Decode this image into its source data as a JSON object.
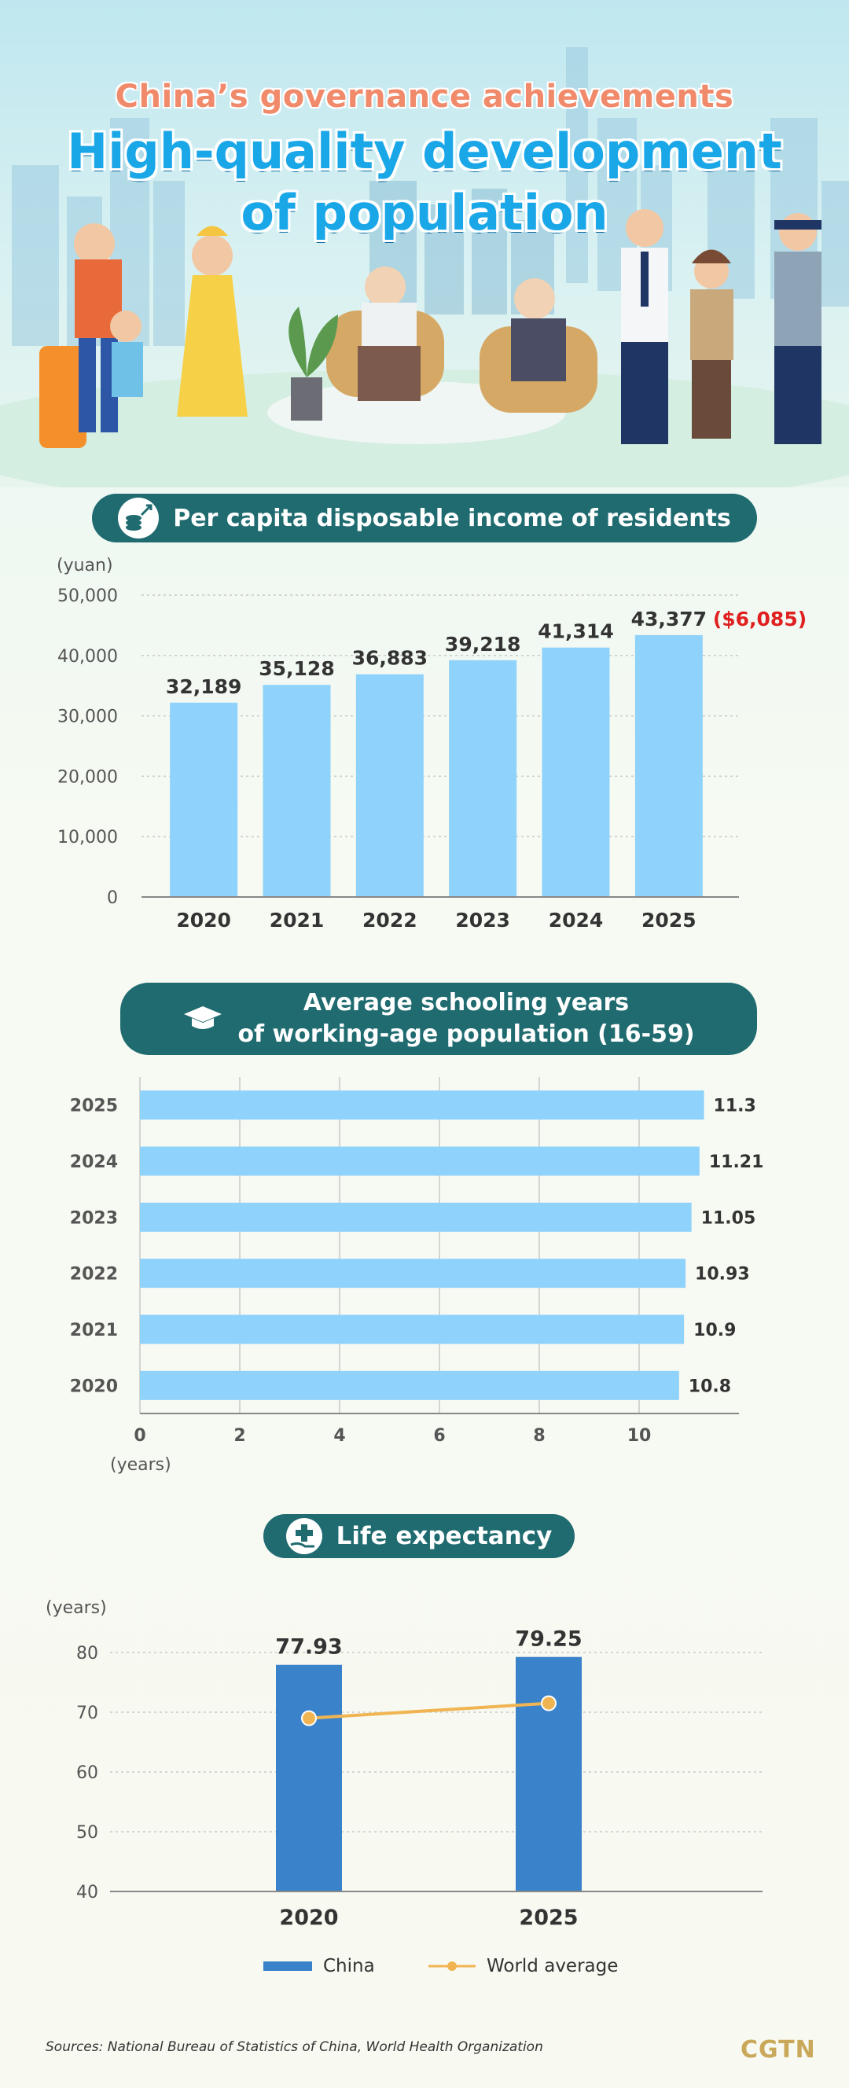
{
  "header": {
    "kicker": "China’s governance achievements",
    "title_line1": "High-quality development",
    "title_line2": "of population"
  },
  "sections": {
    "income_title": "Per capita disposable income of residents",
    "schooling_title_line1": "Average schooling years",
    "schooling_title_line2": "of working-age population (16-59)",
    "life_title": "Life expectancy"
  },
  "colors": {
    "pill": "#1f6b70",
    "light_bar": "#8fd2fb",
    "china_bar": "#3a82c9",
    "world_line": "#f0b552",
    "highlight": "#e02020"
  },
  "chart_data": [
    {
      "type": "bar",
      "title": "Per capita disposable income of residents",
      "ylabel": "(yuan)",
      "categories": [
        "2020",
        "2021",
        "2022",
        "2023",
        "2024",
        "2025"
      ],
      "values": [
        32189,
        35128,
        36883,
        39218,
        41314,
        43377
      ],
      "value_labels": [
        "32,189",
        "35,128",
        "36,883",
        "39,218",
        "41,314",
        "43,377"
      ],
      "annotation": "($6,085)",
      "ylim": [
        0,
        50000
      ],
      "yticks": [
        0,
        10000,
        20000,
        30000,
        40000,
        50000
      ],
      "ytick_labels": [
        "0",
        "10,000",
        "20,000",
        "30,000",
        "40,000",
        "50,000"
      ],
      "grid": true
    },
    {
      "type": "bar",
      "orientation": "horizontal",
      "title": "Average schooling years of working-age population (16-59)",
      "xlabel": "(years)",
      "categories": [
        "2025",
        "2024",
        "2023",
        "2022",
        "2021",
        "2020"
      ],
      "values": [
        11.3,
        11.21,
        11.05,
        10.93,
        10.9,
        10.8
      ],
      "value_labels": [
        "11.3",
        "11.21",
        "11.05",
        "10.93",
        "10.9",
        "10.8"
      ],
      "xlim": [
        0,
        12
      ],
      "xticks": [
        0,
        2,
        4,
        6,
        8,
        10
      ],
      "xtick_labels": [
        "0",
        "2",
        "4",
        "6",
        "8",
        "10"
      ],
      "grid": true
    },
    {
      "type": "bar",
      "title": "Life expectancy",
      "ylabel": "(years)",
      "categories": [
        "2020",
        "2025"
      ],
      "series": [
        {
          "name": "China",
          "type": "bar",
          "values": [
            77.93,
            79.25
          ],
          "value_labels": [
            "77.93",
            "79.25"
          ]
        },
        {
          "name": "World average",
          "type": "line",
          "values": [
            69.0,
            71.5
          ]
        }
      ],
      "ylim": [
        40,
        80
      ],
      "yticks": [
        40,
        50,
        60,
        70,
        80
      ],
      "ytick_labels": [
        "40",
        "50",
        "60",
        "70",
        "80"
      ],
      "grid": true,
      "legend": "bottom"
    }
  ],
  "footer": {
    "sources": "Sources: National Bureau of Statistics of China, World Health Organization",
    "logo": "CGTN"
  }
}
